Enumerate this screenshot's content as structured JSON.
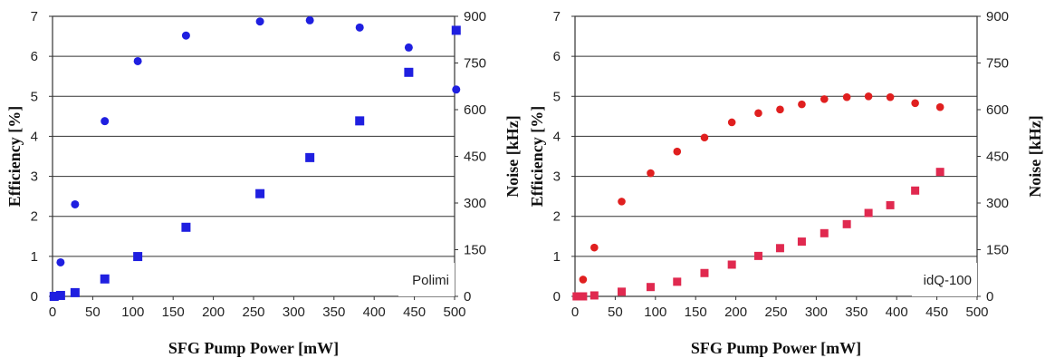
{
  "chart_data": [
    {
      "type": "scatter",
      "label": "Polimi",
      "xlabel": "SFG Pump Power [mW]",
      "ylabel": "Efficiency [%]",
      "y2label": "Noise [kHz]",
      "xlim": [
        0,
        500
      ],
      "ylim": [
        0,
        7
      ],
      "y2lim": [
        0,
        900
      ],
      "xticks": [
        "0",
        "50",
        "100",
        "150",
        "200",
        "250",
        "300",
        "350",
        "400",
        "450",
        "500"
      ],
      "yticks": [
        "0",
        "1",
        "2",
        "3",
        "4",
        "5",
        "6",
        "7"
      ],
      "y2ticks": [
        "0",
        "150",
        "300",
        "450",
        "600",
        "750",
        "900"
      ],
      "grid": true,
      "series": [
        {
          "axis": "left",
          "marker": "circle",
          "color": "#1f1fe0",
          "points": [
            [
              2,
              0.0
            ],
            [
              10,
              0.85
            ],
            [
              28,
              2.3
            ],
            [
              65,
              4.38
            ],
            [
              106,
              5.88
            ],
            [
              166,
              6.52
            ],
            [
              258,
              6.87
            ],
            [
              320,
              6.9
            ],
            [
              382,
              6.72
            ],
            [
              443,
              6.22
            ],
            [
              502,
              5.17
            ]
          ]
        },
        {
          "axis": "right",
          "marker": "square",
          "color": "#1f1fe0",
          "points": [
            [
              2,
              0
            ],
            [
              10,
              3
            ],
            [
              28,
              12
            ],
            [
              65,
              56
            ],
            [
              106,
              128
            ],
            [
              166,
              222
            ],
            [
              258,
              330
            ],
            [
              320,
              446
            ],
            [
              382,
              564
            ],
            [
              443,
              720
            ],
            [
              502,
              855
            ]
          ]
        }
      ]
    },
    {
      "type": "scatter",
      "label": "idQ-100",
      "xlabel": "SFG Pump Power [mW]",
      "ylabel": "Efficiency [%]",
      "y2label": "Noise [kHz]",
      "xlim": [
        0,
        500
      ],
      "ylim": [
        0,
        7
      ],
      "y2lim": [
        0,
        900
      ],
      "xticks": [
        "0",
        "50",
        "100",
        "150",
        "200",
        "250",
        "300",
        "350",
        "400",
        "450",
        "500"
      ],
      "yticks": [
        "0",
        "1",
        "2",
        "3",
        "4",
        "5",
        "6",
        "7"
      ],
      "y2ticks": [
        "0",
        "150",
        "300",
        "450",
        "600",
        "750",
        "900"
      ],
      "grid": true,
      "series": [
        {
          "axis": "left",
          "marker": "circle",
          "color": "#e01f1f",
          "points": [
            [
              2,
              0.0
            ],
            [
              10,
              0.42
            ],
            [
              24,
              1.22
            ],
            [
              58,
              2.37
            ],
            [
              94,
              3.08
            ],
            [
              127,
              3.62
            ],
            [
              161,
              3.97
            ],
            [
              195,
              4.35
            ],
            [
              228,
              4.58
            ],
            [
              255,
              4.67
            ],
            [
              282,
              4.8
            ],
            [
              310,
              4.93
            ],
            [
              338,
              4.98
            ],
            [
              365,
              5.0
            ],
            [
              392,
              4.98
            ],
            [
              423,
              4.83
            ],
            [
              454,
              4.73
            ]
          ]
        },
        {
          "axis": "right",
          "marker": "square",
          "color": "#e0294f",
          "points": [
            [
              2,
              0
            ],
            [
              10,
              0
            ],
            [
              24,
              3
            ],
            [
              58,
              15
            ],
            [
              94,
              30
            ],
            [
              127,
              47
            ],
            [
              161,
              75
            ],
            [
              195,
              102
            ],
            [
              228,
              130
            ],
            [
              255,
              155
            ],
            [
              282,
              176
            ],
            [
              310,
              203
            ],
            [
              338,
              232
            ],
            [
              365,
              268
            ],
            [
              392,
              293
            ],
            [
              423,
              340
            ],
            [
              454,
              400
            ]
          ]
        }
      ]
    }
  ]
}
